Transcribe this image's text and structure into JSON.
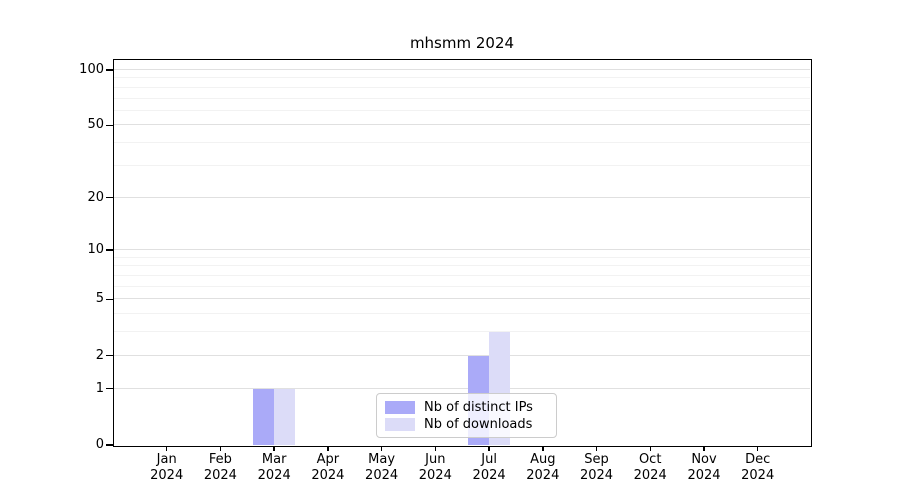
{
  "title": "mhsmm 2024",
  "legend": {
    "items": [
      {
        "label": "Nb of distinct IPs",
        "color": "#aaaaf8"
      },
      {
        "label": "Nb of downloads",
        "color": "#dcdcf8"
      }
    ]
  },
  "colors": {
    "spine": "#000000",
    "major_grid": "#e0e0e0",
    "minor_grid": "#f2f2f2",
    "background": "#ffffff"
  },
  "axes": {
    "y_tick_labels": [
      "0",
      "1",
      "2",
      "5",
      "10",
      "20",
      "50",
      "100"
    ],
    "x_year_line": "2024"
  },
  "chart_data": {
    "type": "bar",
    "title": "mhsmm 2024",
    "categories": [
      "Jan 2024",
      "Feb 2024",
      "Mar 2024",
      "Apr 2024",
      "May 2024",
      "Jun 2024",
      "Jul 2024",
      "Aug 2024",
      "Sep 2024",
      "Oct 2024",
      "Nov 2024",
      "Dec 2024"
    ],
    "series": [
      {
        "name": "Nb of distinct IPs",
        "color": "#aaaaf8",
        "values": [
          0,
          0,
          1,
          0,
          0,
          0,
          2,
          0,
          0,
          0,
          0,
          0
        ]
      },
      {
        "name": "Nb of downloads",
        "color": "#dcdcf8",
        "values": [
          0,
          0,
          1,
          0,
          0,
          0,
          3,
          0,
          0,
          0,
          0,
          0
        ]
      }
    ],
    "xlabel": "",
    "ylabel": "",
    "yscale": "log1p",
    "ylim": [
      0,
      113
    ],
    "y_major_ticks": [
      0,
      1,
      2,
      5,
      10,
      20,
      50,
      100
    ],
    "y_minor_gridlines": [
      3,
      4,
      6,
      7,
      8,
      9,
      30,
      40,
      60,
      70,
      80,
      90
    ],
    "grid": true,
    "legend_position": "lower center"
  }
}
